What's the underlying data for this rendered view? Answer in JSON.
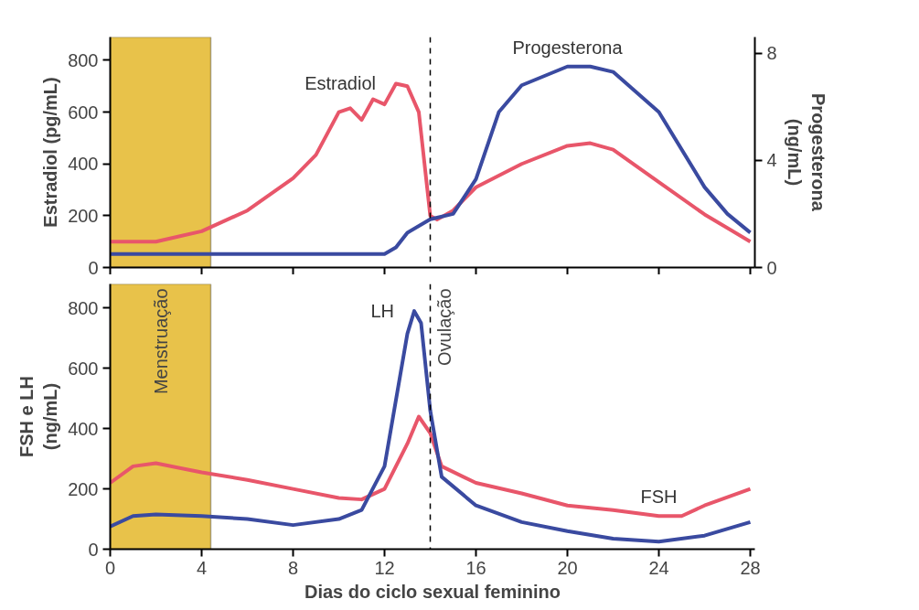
{
  "chart_data": [
    {
      "type": "line",
      "ylabel": "Estradiol (pg/mL)",
      "y2label": "Progesterona\n(ng/mL)",
      "xlim": [
        0,
        28.2
      ],
      "xticks": [
        0,
        4,
        8,
        12,
        16,
        20,
        24,
        28
      ],
      "ylim": [
        0,
        890
      ],
      "yticks": [
        0,
        200,
        400,
        600,
        800
      ],
      "y2lim": [
        0,
        8.6
      ],
      "y2ticks": [
        0,
        4,
        8
      ],
      "tick_labels": "y",
      "grid": false,
      "marker": "none",
      "line_style": "solid",
      "series": [
        {
          "name": "Estradiol",
          "color": "#e8566a",
          "x": [
            0,
            2,
            4,
            6,
            8,
            9,
            10,
            10.5,
            11,
            11.5,
            12,
            12.5,
            13,
            13.5,
            14,
            14.3,
            15,
            16,
            18,
            20,
            21,
            22,
            24,
            26,
            28
          ],
          "values": [
            100,
            100,
            140,
            220,
            345,
            435,
            600,
            615,
            570,
            650,
            630,
            710,
            700,
            600,
            200,
            185,
            220,
            310,
            400,
            470,
            480,
            455,
            330,
            205,
            100
          ]
        },
        {
          "name": "Progesterona",
          "color": "#3a4aa0",
          "axis": "y2",
          "x": [
            0,
            12,
            12.5,
            13,
            14,
            15,
            16,
            17,
            18,
            20,
            21,
            22,
            24,
            26,
            27,
            28
          ],
          "values": [
            0.5,
            0.5,
            0.75,
            1.3,
            1.8,
            2.0,
            3.3,
            5.8,
            6.8,
            7.5,
            7.5,
            7.3,
            5.8,
            3.0,
            2.0,
            1.3
          ]
        }
      ],
      "bands": [
        {
          "axis": "x",
          "from": 0,
          "to": 4.4,
          "label": null,
          "color": "#e8c24a"
        }
      ],
      "ref_lines": [
        {
          "axis": "x",
          "value": 14,
          "label": null,
          "line_style": "dashed"
        }
      ]
    },
    {
      "type": "line",
      "xlabel": "Dias do ciclo sexual feminino",
      "ylabel": "FSH e LH\n(ng/mL)",
      "xlim": [
        0,
        28.2
      ],
      "xticks": [
        0,
        4,
        8,
        12,
        16,
        20,
        24,
        28
      ],
      "ylim": [
        0,
        880
      ],
      "yticks": [
        0,
        200,
        400,
        600,
        800
      ],
      "grid": false,
      "marker": "none",
      "line_style": "solid",
      "series": [
        {
          "name": "FSH",
          "color": "#e8566a",
          "x": [
            0,
            1,
            2,
            4,
            6,
            8,
            10,
            11,
            12,
            13,
            13.5,
            14,
            14.5,
            16,
            18,
            20,
            22,
            24,
            25,
            26,
            28
          ],
          "values": [
            220,
            275,
            285,
            255,
            230,
            200,
            170,
            165,
            200,
            350,
            440,
            385,
            275,
            220,
            185,
            145,
            130,
            110,
            110,
            145,
            200
          ]
        },
        {
          "name": "LH",
          "color": "#3a4aa0",
          "x": [
            0,
            1,
            2,
            4,
            6,
            8,
            10,
            11,
            12,
            12.5,
            13,
            13.3,
            13.6,
            14,
            14.5,
            16,
            18,
            20,
            22,
            24,
            26,
            28
          ],
          "values": [
            75,
            110,
            115,
            110,
            100,
            80,
            100,
            130,
            275,
            495,
            715,
            790,
            750,
            460,
            240,
            145,
            90,
            60,
            35,
            25,
            45,
            90
          ]
        }
      ],
      "bands": [
        {
          "axis": "x",
          "from": 0,
          "to": 4.4,
          "label": "Menstruação",
          "color": "#e8c24a"
        }
      ],
      "ref_lines": [
        {
          "axis": "x",
          "value": 14,
          "label": "Ovulação",
          "line_style": "dashed"
        }
      ]
    }
  ]
}
